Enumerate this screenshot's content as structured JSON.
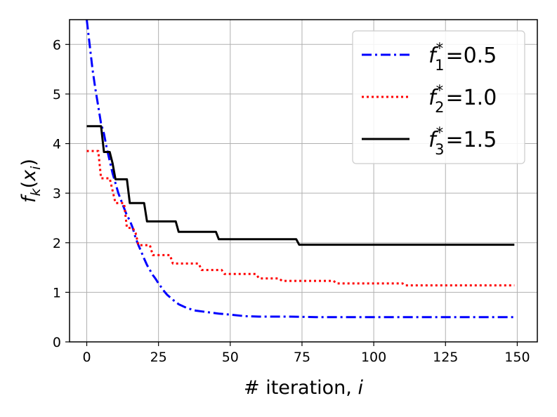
{
  "chart_data": {
    "type": "line",
    "xlabel": "# iteration, i",
    "ylabel": "f_k(x_i)",
    "xlim": [
      -6,
      157
    ],
    "ylim": [
      0,
      6.5
    ],
    "xticks": [
      "0",
      "25",
      "50",
      "75",
      "100",
      "125",
      "150"
    ],
    "yticks": [
      "0",
      "1",
      "2",
      "3",
      "4",
      "5",
      "6"
    ],
    "grid": true,
    "legend_position": "top-right",
    "series": [
      {
        "name": "f_1^* = 0.5",
        "legend_main": "f",
        "legend_sub": "1",
        "legend_sup": "*",
        "legend_value": "=0.5",
        "color": "#0000ff",
        "style": "dashdot",
        "x": [
          0,
          1,
          2,
          3,
          4,
          5,
          6,
          7,
          8,
          9,
          10,
          11,
          12,
          13,
          14,
          15,
          16,
          17,
          18,
          19,
          20,
          21,
          22,
          23,
          24,
          25,
          26,
          27,
          28,
          30,
          32,
          35,
          38,
          42,
          46,
          50,
          55,
          60,
          70,
          80,
          100,
          120,
          149
        ],
        "y": [
          6.5,
          6.0,
          5.5,
          5.1,
          4.75,
          4.4,
          4.2,
          3.9,
          3.65,
          3.4,
          3.2,
          3.0,
          2.85,
          2.7,
          2.55,
          2.45,
          2.3,
          2.1,
          1.95,
          1.82,
          1.68,
          1.55,
          1.45,
          1.35,
          1.27,
          1.18,
          1.1,
          1.02,
          0.95,
          0.85,
          0.76,
          0.68,
          0.63,
          0.6,
          0.57,
          0.55,
          0.52,
          0.51,
          0.51,
          0.5,
          0.5,
          0.5,
          0.5
        ]
      },
      {
        "name": "f_2^* = 1.0",
        "legend_main": "f",
        "legend_sub": "2",
        "legend_sup": "*",
        "legend_value": "=1.0",
        "color": "#ff0000",
        "style": "dotted",
        "x": [
          0,
          4,
          5,
          8,
          10,
          13,
          14,
          16,
          17,
          18,
          22,
          23,
          29,
          30,
          39,
          40,
          47,
          48,
          59,
          60,
          67,
          68,
          86,
          87,
          110,
          111,
          149
        ],
        "y": [
          3.85,
          3.85,
          3.3,
          3.3,
          2.8,
          2.8,
          2.3,
          2.3,
          2.2,
          1.95,
          1.95,
          1.75,
          1.75,
          1.58,
          1.58,
          1.45,
          1.45,
          1.37,
          1.37,
          1.28,
          1.28,
          1.23,
          1.23,
          1.18,
          1.18,
          1.14,
          1.14
        ]
      },
      {
        "name": "f_3^* = 1.5",
        "legend_main": "f",
        "legend_sub": "3",
        "legend_sup": "*",
        "legend_value": "=1.5",
        "color": "#000000",
        "style": "solid",
        "x": [
          0,
          5,
          6,
          8,
          9,
          10,
          11,
          14,
          15,
          16,
          20,
          21,
          31,
          32,
          45,
          46,
          73,
          74,
          149
        ],
        "y": [
          4.35,
          4.35,
          3.83,
          3.83,
          3.6,
          3.28,
          3.28,
          3.28,
          2.8,
          2.8,
          2.8,
          2.43,
          2.43,
          2.22,
          2.22,
          2.07,
          2.07,
          1.96,
          1.96
        ]
      }
    ]
  }
}
